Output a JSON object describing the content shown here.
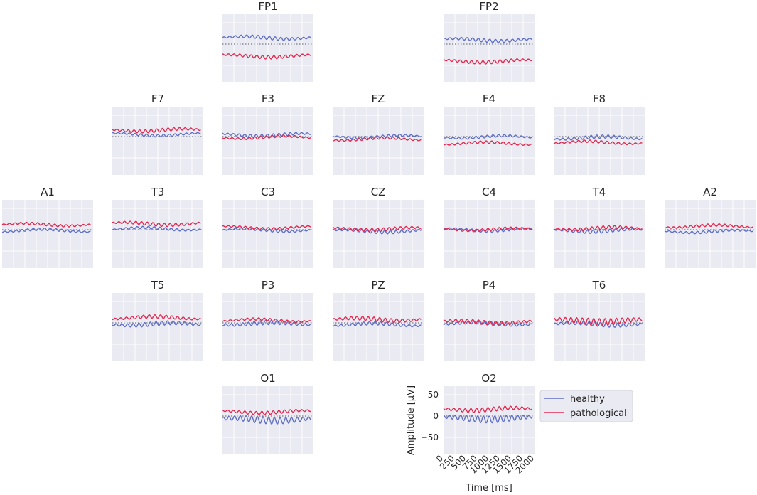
{
  "chart_data": {
    "type": "line",
    "layout": "topographic grid of electrode subplots, shared axes",
    "x_axis": {
      "label": "Time [ms]",
      "range": [
        0,
        2000
      ],
      "ticks": [
        "0",
        "250",
        "500",
        "750",
        "1000",
        "1250",
        "1500",
        "1750",
        "2000"
      ],
      "tick_rotation_deg": 45
    },
    "y_axis": {
      "label": "Amplitude [µV]",
      "range": [
        -90,
        70
      ],
      "ticks": [
        "50",
        "0",
        "−50"
      ]
    },
    "grid": true,
    "zero_line": "dotted",
    "legend": {
      "placement": "right of O2",
      "entries": [
        "healthy",
        "pathological"
      ]
    },
    "series_colors": {
      "healthy": "#5f6fc6",
      "pathological": "#e3284f"
    },
    "oscillation_period_ms": 125,
    "series_note": "Per-channel series are given as mean level and oscillation amplitude in µV (approximate read-off).",
    "channels": [
      {
        "name": "FP1",
        "healthy_mean": 15,
        "healthy_osc": 4,
        "pathological_mean": -28,
        "pathological_osc": 4
      },
      {
        "name": "FP2",
        "healthy_mean": 10,
        "healthy_osc": 4,
        "pathological_mean": -40,
        "pathological_osc": 4
      },
      {
        "name": "F7",
        "healthy_mean": 5,
        "healthy_osc": 3,
        "pathological_mean": 15,
        "pathological_osc": 4
      },
      {
        "name": "F3",
        "healthy_mean": 4,
        "healthy_osc": 4,
        "pathological_mean": -2,
        "pathological_osc": 3
      },
      {
        "name": "FZ",
        "healthy_mean": 0,
        "healthy_osc": 3,
        "pathological_mean": -6,
        "pathological_osc": 3
      },
      {
        "name": "F4",
        "healthy_mean": -1,
        "healthy_osc": 3,
        "pathological_mean": -16,
        "pathological_osc": 3
      },
      {
        "name": "F8",
        "healthy_mean": -3,
        "healthy_osc": 4,
        "pathological_mean": -14,
        "pathological_osc": 3
      },
      {
        "name": "A1",
        "healthy_mean": -2,
        "healthy_osc": 3,
        "pathological_mean": 12,
        "pathological_osc": 3
      },
      {
        "name": "T3",
        "healthy_mean": 2,
        "healthy_osc": 3,
        "pathological_mean": 14,
        "pathological_osc": 4
      },
      {
        "name": "C3",
        "healthy_mean": -1,
        "healthy_osc": 3,
        "pathological_mean": 5,
        "pathological_osc": 3
      },
      {
        "name": "CZ",
        "healthy_mean": -3,
        "healthy_osc": 4,
        "pathological_mean": 2,
        "pathological_osc": 4
      },
      {
        "name": "C4",
        "healthy_mean": 0,
        "healthy_osc": 3,
        "pathological_mean": 1,
        "pathological_osc": 3
      },
      {
        "name": "T4",
        "healthy_mean": -2,
        "healthy_osc": 4,
        "pathological_mean": 3,
        "pathological_osc": 4
      },
      {
        "name": "A2",
        "healthy_mean": -4,
        "healthy_osc": 3,
        "pathological_mean": 8,
        "pathological_osc": 3
      },
      {
        "name": "T5",
        "healthy_mean": -3,
        "healthy_osc": 5,
        "pathological_mean": 12,
        "pathological_osc": 4
      },
      {
        "name": "P3",
        "healthy_mean": -2,
        "healthy_osc": 5,
        "pathological_mean": 6,
        "pathological_osc": 3
      },
      {
        "name": "PZ",
        "healthy_mean": -4,
        "healthy_osc": 4,
        "pathological_mean": 8,
        "pathological_osc": 5
      },
      {
        "name": "P4",
        "healthy_mean": -2,
        "healthy_osc": 4,
        "pathological_mean": 2,
        "pathological_osc": 5
      },
      {
        "name": "T6",
        "healthy_mean": -3,
        "healthy_osc": 5,
        "pathological_mean": 5,
        "pathological_osc": 8
      },
      {
        "name": "O1",
        "healthy_mean": -8,
        "healthy_osc": 8,
        "pathological_mean": 10,
        "pathological_osc": 4
      },
      {
        "name": "O2",
        "healthy_mean": -5,
        "healthy_osc": 8,
        "pathological_mean": 16,
        "pathological_osc": 5
      }
    ]
  }
}
